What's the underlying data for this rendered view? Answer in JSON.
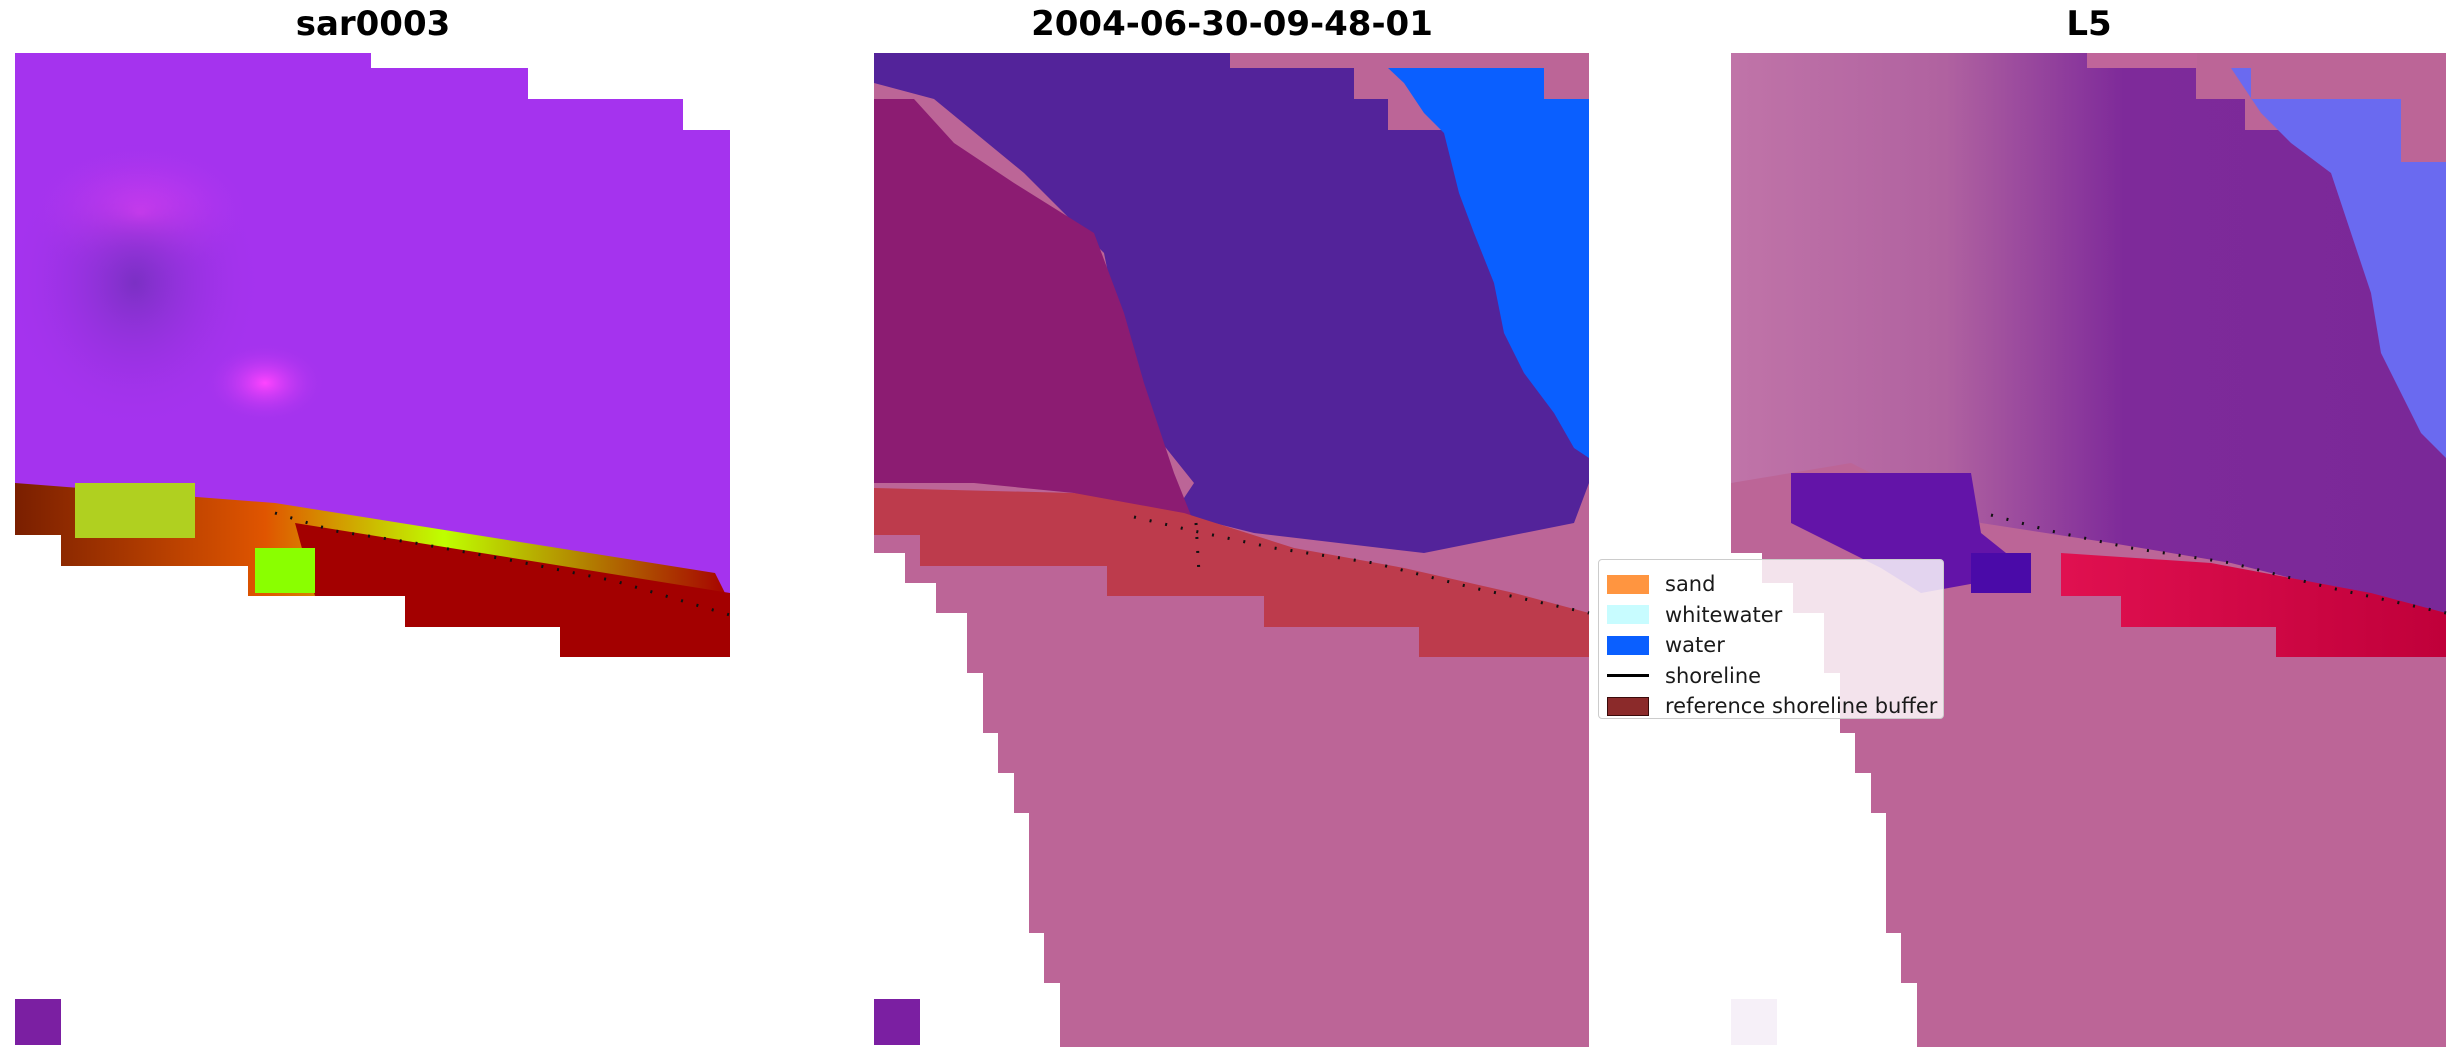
{
  "panels": [
    {
      "title": "sar0003"
    },
    {
      "title": "2004-06-30-09-48-01"
    },
    {
      "title": "L5"
    }
  ],
  "legend": {
    "items": [
      {
        "label": "sand",
        "color": "#ff9540"
      },
      {
        "label": "whitewater",
        "color": "#c8fcff"
      },
      {
        "label": "water",
        "color": "#0a5fff"
      },
      {
        "label": "shoreline",
        "color": "#000000"
      },
      {
        "label": "reference shoreline buffer",
        "color": "#8b2a2a"
      }
    ]
  },
  "colors": {
    "sar_purple": "#a533ee",
    "class_blue_purple": "#53239a",
    "class_magenta": "#8c1c72",
    "class_pink_sand": "#bc6597",
    "class_red_buffer": "#bd3b4c",
    "water_blue": "#0a5fff",
    "shoreline_dots": "#000000"
  }
}
